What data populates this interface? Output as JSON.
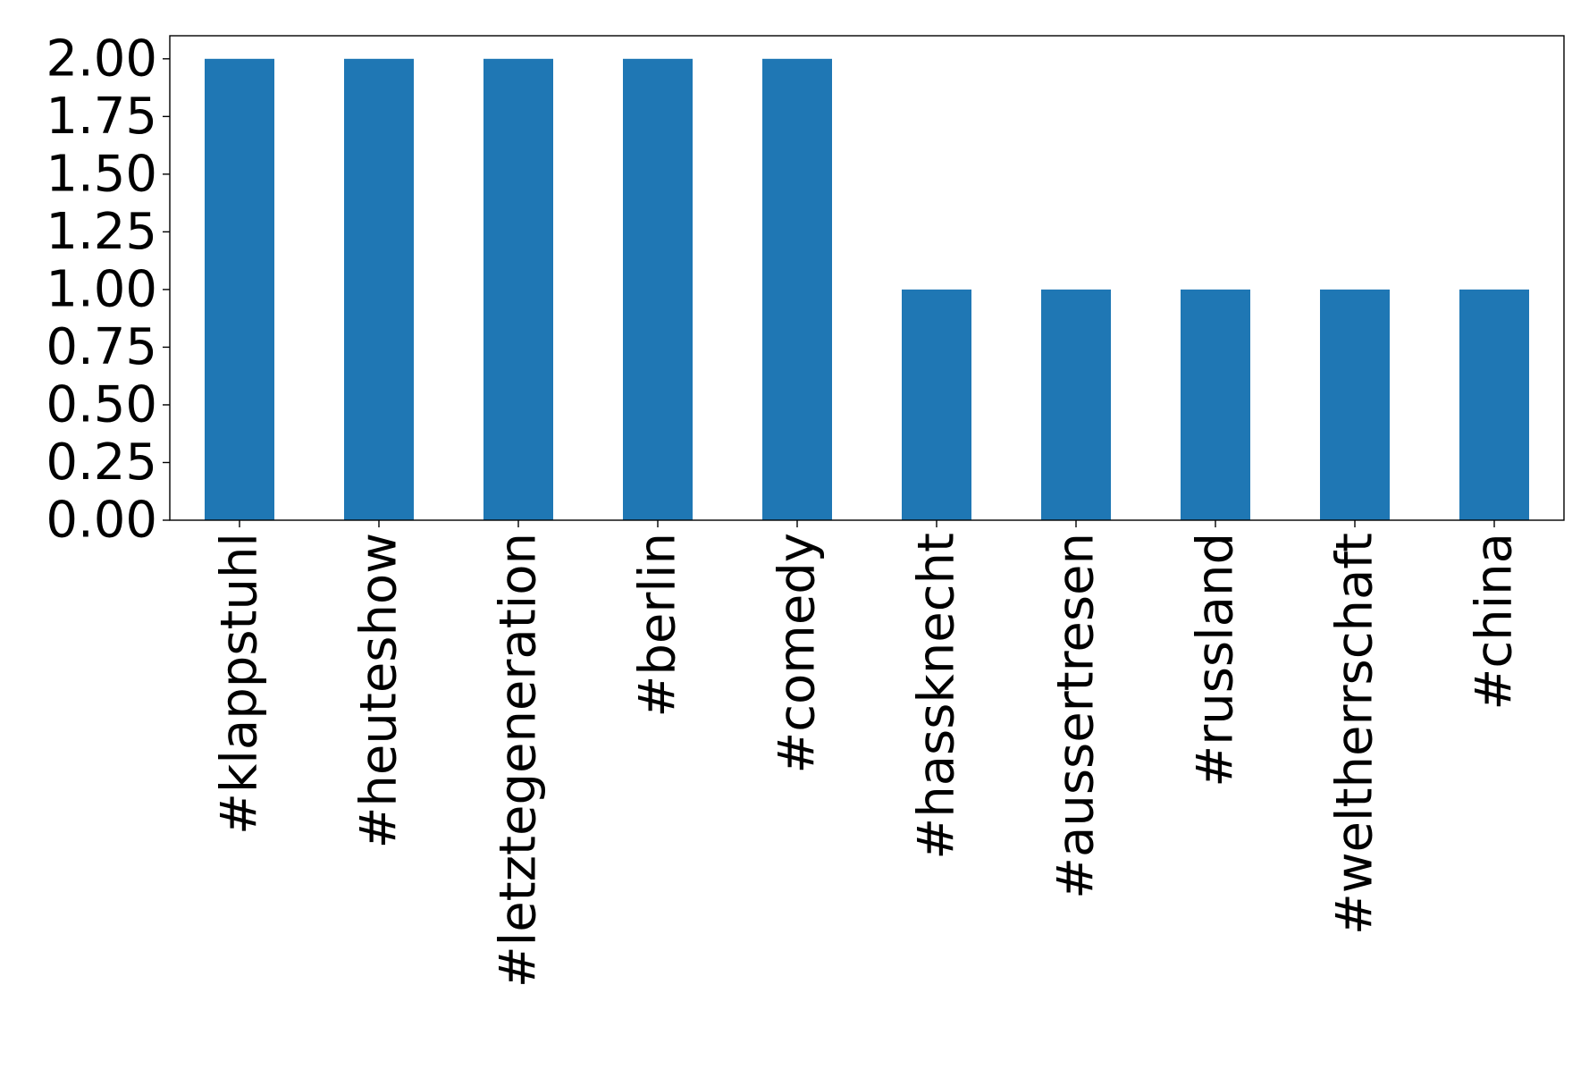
{
  "chart_data": {
    "type": "bar",
    "title": "",
    "xlabel": "",
    "ylabel": "",
    "categories": [
      "#klappstuhl",
      "#heuteshow",
      "#letztegeneration",
      "#berlin",
      "#comedy",
      "#hassknecht",
      "#aussertresen",
      "#russland",
      "#weltherrschaft",
      "#china"
    ],
    "values": [
      2,
      2,
      2,
      2,
      2,
      1,
      1,
      1,
      1,
      1
    ],
    "ylim": [
      0,
      2.1
    ],
    "yticks": [
      "0.00",
      "0.25",
      "0.50",
      "0.75",
      "1.00",
      "1.25",
      "1.50",
      "1.75",
      "2.00"
    ],
    "bar_color": "#1f77b4",
    "grid": false,
    "legend": "none"
  }
}
